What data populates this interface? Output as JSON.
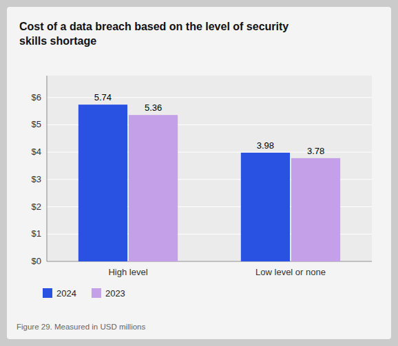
{
  "chart_data": {
    "type": "bar",
    "title": "Cost of a data breach based on the level of security\nskills shortage",
    "note": "Figure 29. Measured in USD millions",
    "categories": [
      "High level",
      "Low level or none"
    ],
    "series": [
      {
        "name": "2024",
        "color": "#2952E3",
        "values": [
          5.74,
          3.98
        ]
      },
      {
        "name": "2023",
        "color": "#C4A0E8",
        "values": [
          5.36,
          3.78
        ]
      }
    ],
    "ylim": [
      0,
      6.8
    ],
    "yticks": [
      {
        "value": 0,
        "label": "$0"
      },
      {
        "value": 1,
        "label": "$1"
      },
      {
        "value": 2,
        "label": "$2"
      },
      {
        "value": 3,
        "label": "$3"
      },
      {
        "value": 4,
        "label": "$4"
      },
      {
        "value": 5,
        "label": "$5"
      },
      {
        "value": 6,
        "label": "$6"
      }
    ],
    "grid": true,
    "legend": "lower left",
    "data_labels": true
  }
}
